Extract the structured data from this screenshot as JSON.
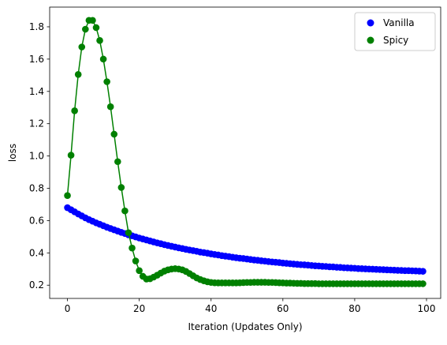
{
  "chart_data": {
    "type": "scatter",
    "title": "",
    "xlabel": "Iteration (Updates Only)",
    "ylabel": "loss",
    "xlim": [
      -4.95,
      103.95
    ],
    "ylim": [
      0.118,
      1.922
    ],
    "xticks": [
      0,
      20,
      40,
      60,
      80,
      100
    ],
    "xtick_labels": [
      "0",
      "20",
      "40",
      "60",
      "80",
      "100"
    ],
    "yticks": [
      0.2,
      0.4,
      0.6,
      0.8,
      1.0,
      1.2,
      1.4,
      1.6,
      1.8
    ],
    "ytick_labels": [
      "0.2",
      "0.4",
      "0.6",
      "0.8",
      "1.0",
      "1.2",
      "1.4",
      "1.6",
      "1.8"
    ],
    "grid": false,
    "legend_position": "upper-right",
    "x": [
      0,
      1,
      2,
      3,
      4,
      5,
      6,
      7,
      8,
      9,
      10,
      11,
      12,
      13,
      14,
      15,
      16,
      17,
      18,
      19,
      20,
      21,
      22,
      23,
      24,
      25,
      26,
      27,
      28,
      29,
      30,
      31,
      32,
      33,
      34,
      35,
      36,
      37,
      38,
      39,
      40,
      41,
      42,
      43,
      44,
      45,
      46,
      47,
      48,
      49,
      50,
      51,
      52,
      53,
      54,
      55,
      56,
      57,
      58,
      59,
      60,
      61,
      62,
      63,
      64,
      65,
      66,
      67,
      68,
      69,
      70,
      71,
      72,
      73,
      74,
      75,
      76,
      77,
      78,
      79,
      80,
      81,
      82,
      83,
      84,
      85,
      86,
      87,
      88,
      89,
      90,
      91,
      92,
      93,
      94,
      95,
      96,
      97,
      98,
      99
    ],
    "series": [
      {
        "name": "Vanilla",
        "color": "#0000ff",
        "marker": "circle",
        "line": false,
        "values": [
          0.68,
          0.667,
          0.654,
          0.641,
          0.629,
          0.617,
          0.606,
          0.596,
          0.586,
          0.577,
          0.568,
          0.559,
          0.551,
          0.543,
          0.535,
          0.527,
          0.52,
          0.512,
          0.506,
          0.499,
          0.492,
          0.486,
          0.48,
          0.474,
          0.468,
          0.462,
          0.457,
          0.451,
          0.446,
          0.441,
          0.436,
          0.431,
          0.427,
          0.422,
          0.418,
          0.414,
          0.41,
          0.405,
          0.402,
          0.398,
          0.394,
          0.39,
          0.387,
          0.383,
          0.38,
          0.377,
          0.373,
          0.37,
          0.367,
          0.365,
          0.362,
          0.359,
          0.356,
          0.354,
          0.351,
          0.349,
          0.346,
          0.344,
          0.342,
          0.34,
          0.337,
          0.335,
          0.333,
          0.331,
          0.329,
          0.327,
          0.326,
          0.324,
          0.322,
          0.32,
          0.319,
          0.317,
          0.316,
          0.314,
          0.313,
          0.311,
          0.31,
          0.308,
          0.307,
          0.306,
          0.305,
          0.303,
          0.302,
          0.301,
          0.3,
          0.299,
          0.298,
          0.297,
          0.296,
          0.295,
          0.294,
          0.293,
          0.292,
          0.291,
          0.29,
          0.29,
          0.289,
          0.288,
          0.287,
          0.286
        ]
      },
      {
        "name": "Spicy",
        "color": "#008000",
        "marker": "circle",
        "line": true,
        "values": [
          0.755,
          1.005,
          1.28,
          1.505,
          1.675,
          1.785,
          1.84,
          1.84,
          1.795,
          1.715,
          1.6,
          1.46,
          1.305,
          1.135,
          0.965,
          0.805,
          0.66,
          0.525,
          0.43,
          0.35,
          0.29,
          0.255,
          0.238,
          0.24,
          0.25,
          0.262,
          0.275,
          0.287,
          0.295,
          0.3,
          0.302,
          0.3,
          0.295,
          0.285,
          0.272,
          0.258,
          0.245,
          0.235,
          0.227,
          0.221,
          0.217,
          0.215,
          0.214,
          0.214,
          0.214,
          0.214,
          0.214,
          0.214,
          0.215,
          0.216,
          0.217,
          0.217,
          0.218,
          0.218,
          0.218,
          0.218,
          0.217,
          0.217,
          0.216,
          0.215,
          0.214,
          0.213,
          0.213,
          0.212,
          0.211,
          0.211,
          0.21,
          0.21,
          0.21,
          0.21,
          0.209,
          0.209,
          0.209,
          0.209,
          0.209,
          0.209,
          0.209,
          0.209,
          0.209,
          0.209,
          0.209,
          0.209,
          0.209,
          0.209,
          0.209,
          0.209,
          0.209,
          0.209,
          0.209,
          0.209,
          0.209,
          0.209,
          0.209,
          0.209,
          0.209,
          0.209,
          0.209,
          0.209,
          0.209,
          0.209
        ]
      }
    ]
  }
}
